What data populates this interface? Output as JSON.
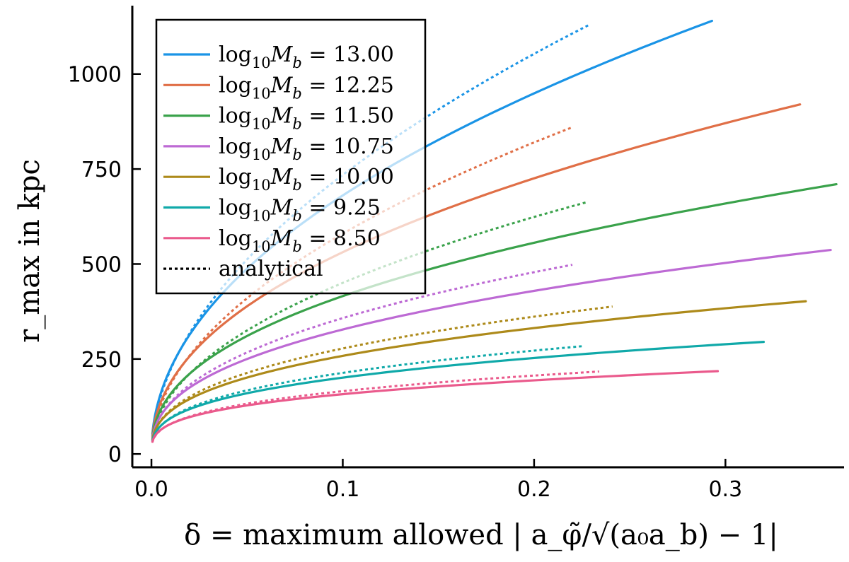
{
  "chart_data": {
    "type": "line",
    "xlabel": "δ = maximum allowed | a_φ̃/√(a₀a_b) − 1|",
    "ylabel": "r_max in kpc",
    "xlim": [
      -0.01,
      0.362
    ],
    "ylim": [
      -35,
      1180
    ],
    "xticks": [
      0.0,
      0.1,
      0.2,
      0.3
    ],
    "xtick_labels": [
      "0.0",
      "0.1",
      "0.2",
      "0.3"
    ],
    "yticks": [
      0,
      250,
      500,
      750,
      1000
    ],
    "ytick_labels": [
      "0",
      "250",
      "500",
      "750",
      "1000"
    ],
    "grid": false,
    "legend_position": "top-left",
    "legend": [
      {
        "label": "log10 Mb = 13.00",
        "color": "#1a94e6",
        "style": "solid"
      },
      {
        "label": "log10 Mb = 12.25",
        "color": "#e06f47",
        "style": "solid"
      },
      {
        "label": "log10 Mb = 11.50",
        "color": "#3aa24b",
        "style": "solid"
      },
      {
        "label": "log10 Mb = 10.75",
        "color": "#bd6ad4",
        "style": "solid"
      },
      {
        "label": "log10 Mb = 10.00",
        "color": "#ad8a1a",
        "style": "solid"
      },
      {
        "label": "log10 Mb = 9.25",
        "color": "#10a9a9",
        "style": "solid"
      },
      {
        "label": "log10 Mb = 8.50",
        "color": "#ea5a8c",
        "style": "solid"
      },
      {
        "label": "analytical",
        "color": "#000000",
        "style": "dotted"
      }
    ],
    "series": [
      {
        "name": "log10 Mb = 13.00",
        "color": "#1a94e6",
        "numerical": {
          "xmax": 0.293,
          "ymax": 1140,
          "exponent": 0.48
        },
        "analytical": {
          "xmax": 0.229,
          "ymax": 1130,
          "exponent": 0.52
        }
      },
      {
        "name": "log10 Mb = 12.25",
        "color": "#e06f47",
        "numerical": {
          "xmax": 0.339,
          "ymax": 920,
          "exponent": 0.45
        },
        "analytical": {
          "xmax": 0.22,
          "ymax": 860,
          "exponent": 0.5
        }
      },
      {
        "name": "log10 Mb = 11.50",
        "color": "#3aa24b",
        "numerical": {
          "xmax": 0.358,
          "ymax": 710,
          "exponent": 0.42
        },
        "analytical": {
          "xmax": 0.227,
          "ymax": 662,
          "exponent": 0.47
        }
      },
      {
        "name": "log10 Mb = 10.75",
        "color": "#bd6ad4",
        "numerical": {
          "xmax": 0.355,
          "ymax": 537,
          "exponent": 0.39
        },
        "analytical": {
          "xmax": 0.22,
          "ymax": 498,
          "exponent": 0.42
        }
      },
      {
        "name": "log10 Mb = 10.00",
        "color": "#ad8a1a",
        "numerical": {
          "xmax": 0.342,
          "ymax": 402,
          "exponent": 0.36
        },
        "analytical": {
          "xmax": 0.241,
          "ymax": 388,
          "exponent": 0.38
        }
      },
      {
        "name": "log10 Mb = 9.25",
        "color": "#10a9a9",
        "numerical": {
          "xmax": 0.32,
          "ymax": 295,
          "exponent": 0.33
        },
        "analytical": {
          "xmax": 0.226,
          "ymax": 284,
          "exponent": 0.35
        }
      },
      {
        "name": "log10 Mb = 8.50",
        "color": "#ea5a8c",
        "numerical": {
          "xmax": 0.296,
          "ymax": 218,
          "exponent": 0.3
        },
        "analytical": {
          "xmax": 0.234,
          "ymax": 217,
          "exponent": 0.32
        }
      }
    ]
  }
}
